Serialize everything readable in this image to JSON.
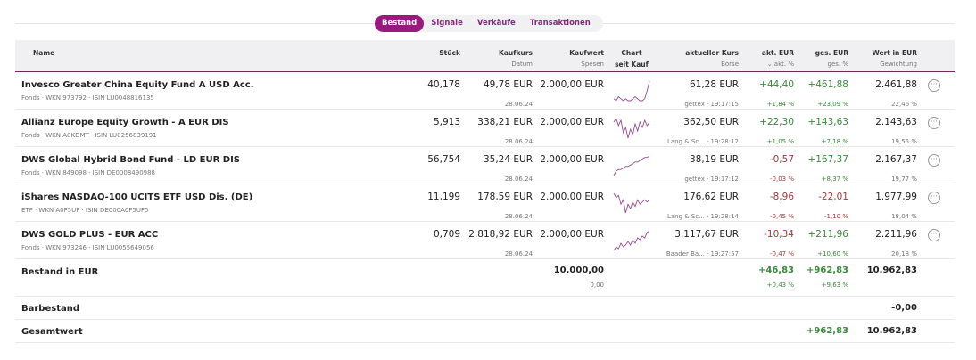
{
  "tabs": [
    {
      "label": "Bestand",
      "active": true
    },
    {
      "label": "Signale"
    },
    {
      "label": "Verkäufe"
    },
    {
      "label": "Transaktionen"
    }
  ],
  "header": {
    "name": "Name",
    "stueck": "Stück",
    "kaufkurs": "Kaufkurs",
    "datum": "Datum",
    "kaufwert": "Kaufwert",
    "spesen": "Spesen",
    "chart": "Chart",
    "seit_kauf": "seit Kauf",
    "kurs": "aktueller Kurs",
    "boerse": "Börse",
    "akt_eur": "akt. EUR",
    "akt_pct": "⌄ akt. %",
    "ges_eur": "ges. EUR",
    "ges_pct": "ges. %",
    "wert": "Wert in EUR",
    "gewichtung": "Gewichtung"
  },
  "positions": [
    {
      "name": "Invesco Greater China Equity Fund A USD Acc.",
      "meta": "Fonds · WKN 973792 · ISIN LU0048816135",
      "stueck": "40,178",
      "kaufkurs": "49,78 EUR",
      "datum": "28.06.24",
      "kaufwert": "2.000,00 EUR",
      "kurs": "61,28 EUR",
      "boerse": "gettex · 19:17:15",
      "akt_eur": "+44,40",
      "akt_pct": "+1,84 %",
      "ges_eur": "+461,88",
      "ges_pct": "+23,09 %",
      "wert": "2.461,88",
      "gewichtung": "22,46 %",
      "spark": [
        5,
        4,
        6,
        5,
        4,
        5,
        4,
        4,
        5,
        6,
        5,
        4,
        4,
        5,
        9,
        14
      ]
    },
    {
      "name": "Allianz Europe Equity Growth - A EUR DIS",
      "meta": "Fonds · WKN A0KDMT · ISIN LU0256839191",
      "stueck": "5,913",
      "kaufkurs": "338,21 EUR",
      "datum": "28.06.24",
      "kaufwert": "2.000,00 EUR",
      "kurs": "362,50 EUR",
      "boerse": "Lang & Sc... · 19:28:12",
      "akt_eur": "+22,30",
      "akt_pct": "+1,05 %",
      "ges_eur": "+143,63",
      "ges_pct": "+7,18 %",
      "wert": "2.143,63",
      "gewichtung": "19,55 %",
      "spark": [
        12,
        14,
        10,
        13,
        6,
        9,
        3,
        8,
        5,
        11,
        7,
        12,
        9,
        13,
        10,
        12
      ]
    },
    {
      "name": "DWS Global Hybrid Bond Fund - LD EUR DIS",
      "meta": "Fonds · WKN 849098 · ISIN DE0008490988",
      "stueck": "56,754",
      "kaufkurs": "35,24 EUR",
      "datum": "28.06.24",
      "kaufwert": "2.000,00 EUR",
      "kurs": "38,19 EUR",
      "boerse": "gettex · 19:17:12",
      "akt_eur": "-0,57",
      "akt_pct": "-0,03 %",
      "ges_eur": "+167,37",
      "ges_pct": "+8,37 %",
      "wert": "2.167,37",
      "gewichtung": "19,77 %",
      "spark": [
        1,
        4,
        5,
        5,
        6,
        7,
        7,
        8,
        9,
        10,
        10,
        11,
        12,
        13,
        13,
        14
      ]
    },
    {
      "name": "iShares NASDAQ-100 UCITS ETF USD Dis. (DE)",
      "meta": "ETF · WKN A0F5UF · ISIN DE000A0F5UF5",
      "stueck": "11,199",
      "kaufkurs": "178,59 EUR",
      "datum": "28.06.24",
      "kaufwert": "2.000,00 EUR",
      "kurs": "176,62 EUR",
      "boerse": "Lang & Sc... · 19:28:14",
      "akt_eur": "-8,96",
      "akt_pct": "-0,45 %",
      "ges_eur": "-22,01",
      "ges_pct": "-1,10 %",
      "wert": "1.977,99",
      "gewichtung": "18,04 %",
      "spark": [
        13,
        11,
        12,
        8,
        10,
        4,
        8,
        6,
        9,
        7,
        10,
        8,
        9,
        10,
        9,
        10
      ]
    },
    {
      "name": "DWS GOLD PLUS - EUR ACC",
      "meta": "Fonds · WKN 973246 · ISIN LU0055649056",
      "stueck": "0,709",
      "kaufkurs": "2.818,92 EUR",
      "datum": "28.06.24",
      "kaufwert": "2.000,00 EUR",
      "kurs": "3.117,67 EUR",
      "boerse": "Baader Ba... · 19:27:57",
      "akt_eur": "-10,34",
      "akt_pct": "-0,47 %",
      "ges_eur": "+211,96",
      "ges_pct": "+10,60 %",
      "wert": "2.211,96",
      "gewichtung": "20,18 %",
      "spark": [
        3,
        5,
        4,
        7,
        5,
        6,
        8,
        6,
        9,
        7,
        10,
        9,
        11,
        10,
        13,
        14
      ]
    }
  ],
  "bestand": {
    "label": "Bestand in EUR",
    "kaufwert": "10.000,00",
    "spesen": "0,00",
    "akt_eur": "+46,83",
    "akt_pct": "+0,43 %",
    "ges_eur": "+962,83",
    "ges_pct": "+9,63 %",
    "wert": "10.962,83"
  },
  "barbestand": {
    "label": "Barbestand",
    "wert": "-0,00"
  },
  "gesamtwert": {
    "label": "Gesamtwert",
    "ges_eur": "+962,83",
    "wert": "10.962,83"
  },
  "colors": {
    "accent": "#99197f",
    "positive": "#3a8a3a",
    "negative": "#a23a3a",
    "sparkline": "#9b4a8f"
  }
}
